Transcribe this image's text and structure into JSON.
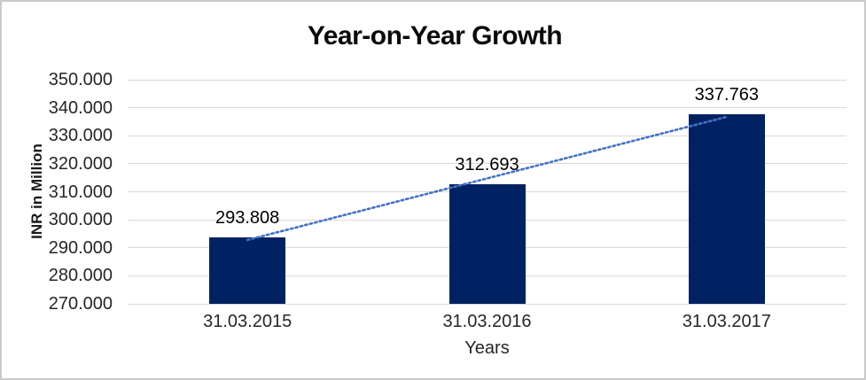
{
  "window": {
    "background_color": "#ffffff",
    "border_color": "#c9c9c9"
  },
  "chart_data": {
    "type": "bar",
    "title": "Year-on-Year Growth",
    "xlabel": "Years",
    "ylabel": "INR in Million",
    "categories": [
      "31.03.2015",
      "31.03.2016",
      "31.03.2017"
    ],
    "values": [
      293.808,
      312.693,
      337.763
    ],
    "data_labels": [
      "293.808",
      "312.693",
      "337.763"
    ],
    "ylim": [
      270,
      350
    ],
    "ytick_step": 10,
    "ytick_labels": [
      "270.000",
      "280.000",
      "290.000",
      "300.000",
      "310.000",
      "320.000",
      "330.000",
      "340.000",
      "350.000"
    ],
    "grid": true,
    "legend": false,
    "bar_color": "#002262",
    "gridline_color": "#d9d9d9",
    "trendline": {
      "type": "linear",
      "style": "dotted",
      "color": "#4472c4",
      "start_value": 292.8,
      "end_value": 336.74
    }
  }
}
